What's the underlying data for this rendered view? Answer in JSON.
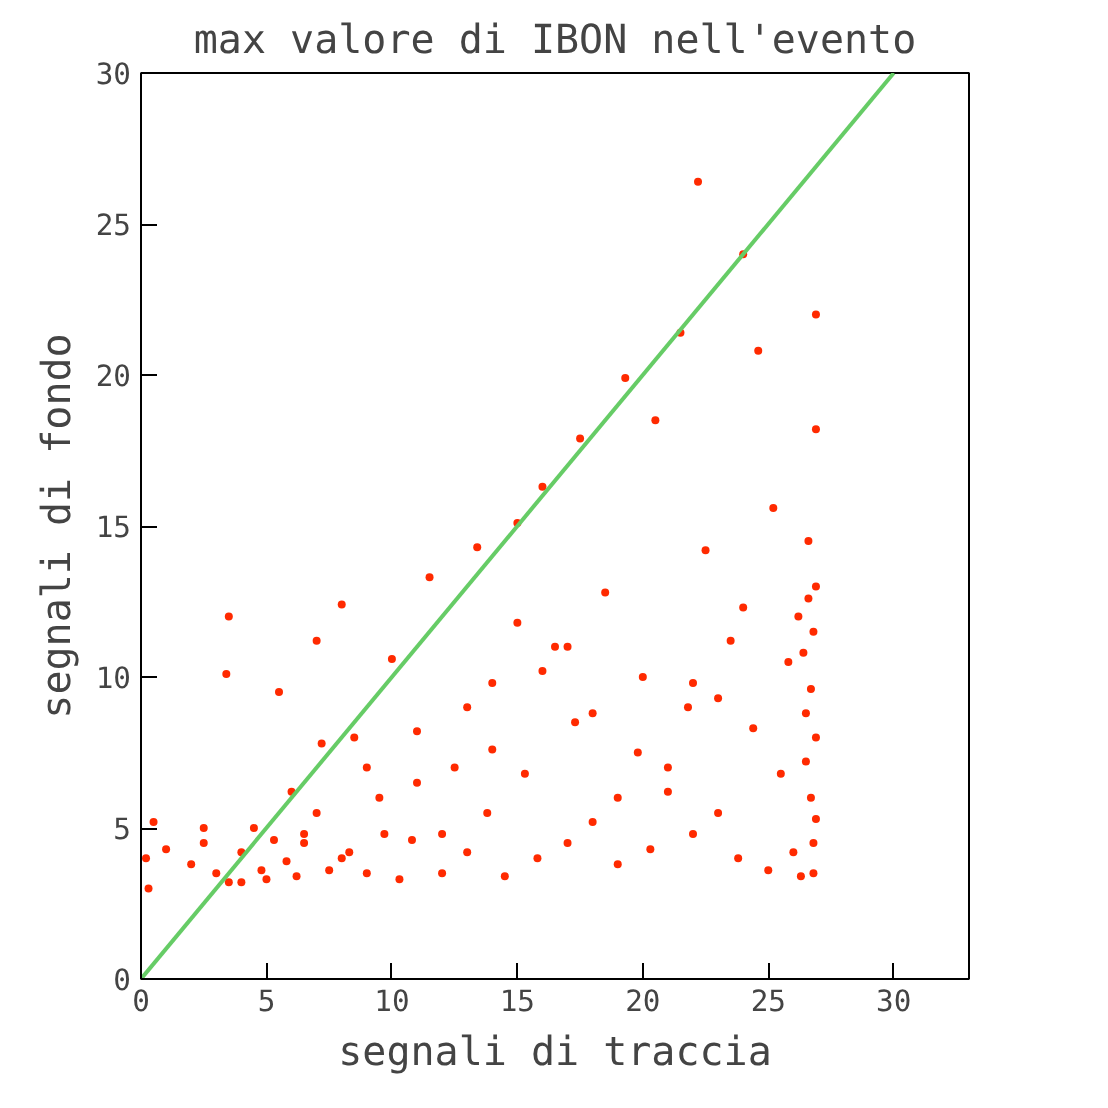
{
  "chart_data": {
    "type": "scatter",
    "title": "max valore di IBON nell'evento",
    "xlabel": "segnali di traccia",
    "ylabel": "segnali di fondo",
    "xlim": [
      0,
      33
    ],
    "ylim": [
      0,
      30
    ],
    "xticks": [
      0,
      5,
      10,
      15,
      20,
      25,
      30
    ],
    "yticks": [
      0,
      5,
      10,
      15,
      20,
      25,
      30
    ],
    "grid": false,
    "series": [
      {
        "color": "#ff2a00",
        "marker": "circle",
        "x": [
          0.2,
          0.5,
          1.0,
          0.3,
          2.0,
          2.5,
          3.0,
          3.5,
          3.4,
          3.5,
          4.0,
          4.5,
          4.8,
          5.0,
          5.3,
          5.5,
          5.8,
          6.0,
          6.2,
          6.5,
          7.0,
          7.2,
          7.5,
          7.0,
          8.0,
          8.3,
          8.5,
          9.0,
          9.5,
          9.7,
          10.0,
          10.3,
          10.8,
          11.0,
          11.5,
          12.0,
          12.5,
          13.0,
          13.4,
          13.8,
          14.0,
          14.5,
          15.0,
          15.3,
          15.8,
          16.0,
          16.5,
          17.0,
          17.3,
          17.5,
          18.0,
          18.5,
          19.0,
          19.3,
          19.8,
          20.0,
          20.3,
          20.5,
          21.0,
          21.5,
          21.8,
          22.0,
          22.2,
          22.5,
          23.0,
          23.5,
          23.8,
          24.0,
          24.4,
          24.6,
          25.0,
          25.2,
          25.5,
          25.8,
          26.0,
          26.2,
          26.3,
          26.5,
          26.6,
          26.7,
          26.8,
          26.9,
          26.9,
          26.8,
          26.7,
          26.9,
          26.5,
          26.8,
          26.9,
          26.4,
          26.9,
          26.6,
          12.0,
          14.0,
          16.0,
          18.0,
          21.0,
          23.0,
          24.0,
          19.0,
          17.0,
          11.0,
          9.0,
          13.0,
          15.0,
          22.0,
          8.0,
          6.5,
          4.0,
          2.5
        ],
        "values": [
          4.0,
          5.2,
          4.3,
          3.0,
          3.8,
          4.5,
          3.5,
          12.0,
          10.1,
          3.2,
          4.2,
          5.0,
          3.6,
          3.3,
          4.6,
          9.5,
          3.9,
          6.2,
          3.4,
          4.8,
          11.2,
          7.8,
          3.6,
          5.5,
          12.4,
          4.2,
          8.0,
          3.5,
          6.0,
          4.8,
          10.6,
          3.3,
          4.6,
          8.2,
          13.3,
          3.5,
          7.0,
          4.2,
          14.3,
          5.5,
          9.8,
          3.4,
          15.1,
          6.8,
          4.0,
          16.3,
          11.0,
          4.5,
          8.5,
          17.9,
          5.2,
          12.8,
          3.8,
          19.9,
          7.5,
          10.0,
          4.3,
          18.5,
          6.2,
          21.4,
          9.0,
          4.8,
          26.4,
          14.2,
          5.5,
          11.2,
          4.0,
          24.0,
          8.3,
          20.8,
          3.6,
          15.6,
          6.8,
          10.5,
          4.2,
          12.0,
          3.4,
          8.8,
          14.5,
          6.0,
          11.5,
          22.0,
          18.2,
          4.5,
          9.6,
          13.0,
          7.2,
          3.5,
          5.3,
          10.8,
          8.0,
          12.6,
          4.8,
          7.6,
          10.2,
          8.8,
          7.0,
          9.3,
          12.3,
          6.0,
          11.0,
          6.5,
          7.0,
          9.0,
          11.8,
          9.8,
          4.0,
          4.5,
          3.2,
          5.0
        ]
      },
      {
        "type": "line",
        "marker": "none",
        "color": "#66cc66",
        "x": [
          0,
          30
        ],
        "values": [
          0,
          30
        ]
      }
    ]
  }
}
